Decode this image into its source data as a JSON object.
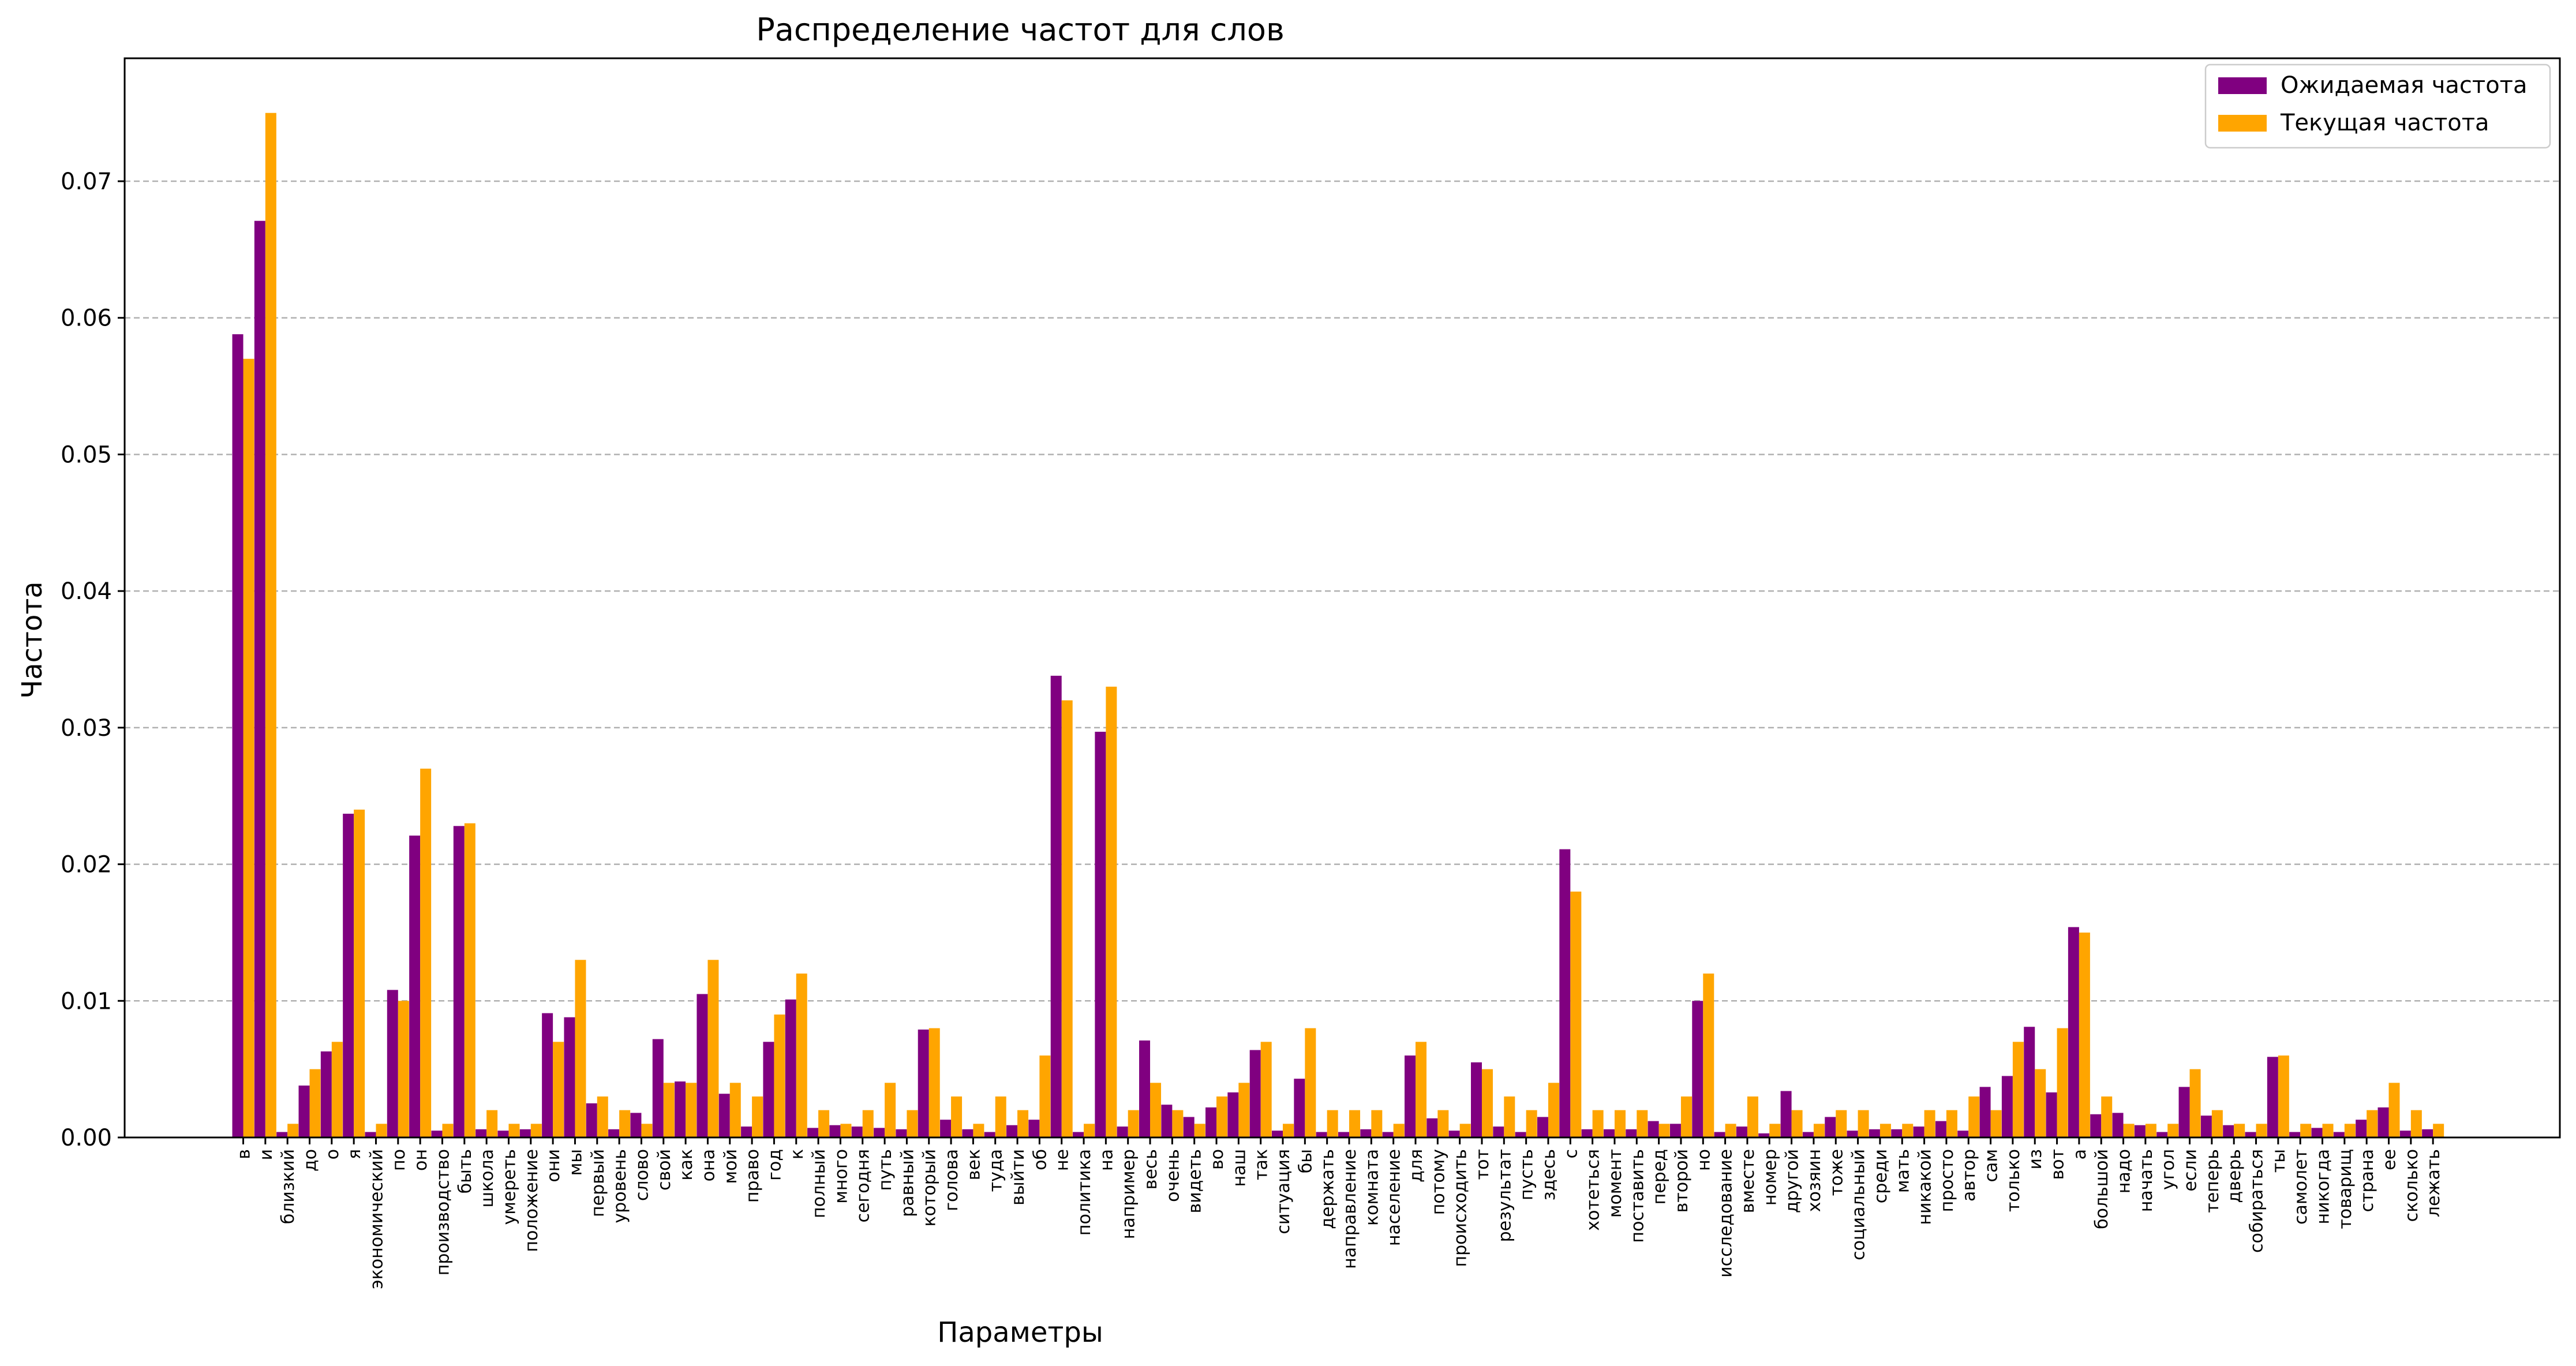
{
  "chart_data": {
    "type": "bar",
    "title": "Распределение частот для слов",
    "xlabel": "Параметры",
    "ylabel": "Частота",
    "ylim": [
      0,
      0.079
    ],
    "yticks": [
      "0.00",
      "0.01",
      "0.02",
      "0.03",
      "0.04",
      "0.05",
      "0.06",
      "0.07"
    ],
    "grid": "horizontal-dashed",
    "legend_position": "top-right",
    "categories": [
      "в",
      "и",
      "близкий",
      "до",
      "о",
      "я",
      "экономический",
      "по",
      "он",
      "производство",
      "быть",
      "школа",
      "умереть",
      "положение",
      "они",
      "мы",
      "первый",
      "уровень",
      "слово",
      "свой",
      "как",
      "она",
      "мой",
      "право",
      "год",
      "к",
      "полный",
      "много",
      "сегодня",
      "путь",
      "равный",
      "который",
      "голова",
      "век",
      "туда",
      "выйти",
      "об",
      "не",
      "политика",
      "на",
      "например",
      "весь",
      "очень",
      "видеть",
      "во",
      "наш",
      "так",
      "ситуация",
      "бы",
      "держать",
      "направление",
      "комната",
      "население",
      "для",
      "потому",
      "происходить",
      "тот",
      "результат",
      "пусть",
      "здесь",
      "с",
      "хотеться",
      "момент",
      "поставить",
      "перед",
      "второй",
      "но",
      "исследование",
      "вместе",
      "номер",
      "другой",
      "хозяин",
      "тоже",
      "социальный",
      "среди",
      "мать",
      "никакой",
      "просто",
      "автор",
      "сам",
      "только",
      "из",
      "вот",
      "а",
      "большой",
      "надо",
      "начать",
      "угол",
      "если",
      "теперь",
      "дверь",
      "собираться",
      "ты",
      "самолет",
      "никогда",
      "товарищ",
      "страна",
      "ее",
      "сколько",
      "лежать"
    ],
    "series": [
      {
        "name": "Ожидаемая частота",
        "color": "#800080",
        "values": [
          0.0588,
          0.0671,
          0.0004,
          0.0038,
          0.0063,
          0.0237,
          0.0004,
          0.0108,
          0.0221,
          0.0005,
          0.0228,
          0.0006,
          0.0005,
          0.0006,
          0.0091,
          0.0088,
          0.0025,
          0.0006,
          0.0018,
          0.0072,
          0.0041,
          0.0105,
          0.0032,
          0.0008,
          0.007,
          0.0101,
          0.0007,
          0.0009,
          0.0008,
          0.0007,
          0.0006,
          0.0079,
          0.0013,
          0.0006,
          0.0004,
          0.0009,
          0.0013,
          0.0338,
          0.0004,
          0.0297,
          0.0008,
          0.0071,
          0.0024,
          0.0015,
          0.0022,
          0.0033,
          0.0064,
          0.0005,
          0.0043,
          0.0004,
          0.0004,
          0.0006,
          0.0004,
          0.006,
          0.0014,
          0.0005,
          0.0055,
          0.0008,
          0.0004,
          0.0015,
          0.0211,
          0.0006,
          0.0006,
          0.0006,
          0.0012,
          0.001,
          0.01,
          0.0004,
          0.0008,
          0.0003,
          0.0034,
          0.0004,
          0.0015,
          0.0005,
          0.0006,
          0.0006,
          0.0008,
          0.0012,
          0.0005,
          0.0037,
          0.0045,
          0.0081,
          0.0033,
          0.0154,
          0.0017,
          0.0018,
          0.0009,
          0.0004,
          0.0037,
          0.0016,
          0.0009,
          0.0004,
          0.0059,
          0.0004,
          0.0007,
          0.0004,
          0.0013,
          0.0022,
          0.0005,
          0.0006
        ]
      },
      {
        "name": "Текущая частота",
        "color": "#FFA500",
        "values": [
          0.057,
          0.075,
          0.001,
          0.005,
          0.007,
          0.024,
          0.001,
          0.01,
          0.027,
          0.001,
          0.023,
          0.002,
          0.001,
          0.001,
          0.007,
          0.013,
          0.003,
          0.002,
          0.001,
          0.004,
          0.004,
          0.013,
          0.004,
          0.003,
          0.009,
          0.012,
          0.002,
          0.001,
          0.002,
          0.004,
          0.002,
          0.008,
          0.003,
          0.001,
          0.003,
          0.002,
          0.006,
          0.032,
          0.001,
          0.033,
          0.002,
          0.004,
          0.002,
          0.001,
          0.003,
          0.004,
          0.007,
          0.001,
          0.008,
          0.002,
          0.002,
          0.002,
          0.001,
          0.007,
          0.002,
          0.001,
          0.005,
          0.003,
          0.002,
          0.004,
          0.018,
          0.002,
          0.002,
          0.002,
          0.001,
          0.003,
          0.012,
          0.001,
          0.003,
          0.001,
          0.002,
          0.001,
          0.002,
          0.002,
          0.001,
          0.001,
          0.002,
          0.002,
          0.003,
          0.002,
          0.007,
          0.005,
          0.008,
          0.015,
          0.003,
          0.001,
          0.001,
          0.001,
          0.005,
          0.002,
          0.001,
          0.001,
          0.006,
          0.001,
          0.001,
          0.001,
          0.002,
          0.004,
          0.002,
          0.001
        ]
      }
    ]
  }
}
